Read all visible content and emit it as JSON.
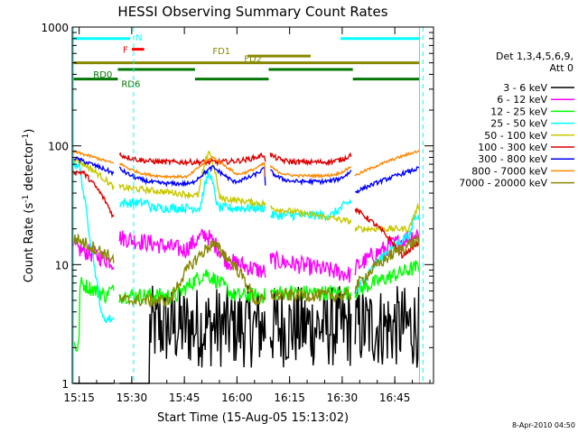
{
  "chart_data": {
    "type": "line",
    "title": "HESSI Observing Summary Count Rates",
    "xlabel": "Start Time (15-Aug-05 15:13:02)",
    "ylabel_main": "Count Rate (s",
    "ylabel_sup1": "-1",
    "ylabel_mid": " detector",
    "ylabel_sup2": "-1",
    "ylabel_end": ")",
    "y_scale": "log",
    "xlim_minutes": [
      0,
      103
    ],
    "ylim": [
      1,
      1000
    ],
    "xticks": [
      {
        "label": "15:15",
        "m": 1.967
      },
      {
        "label": "15:30",
        "m": 16.967
      },
      {
        "label": "15:45",
        "m": 31.967
      },
      {
        "label": "16:00",
        "m": 46.967
      },
      {
        "label": "16:15",
        "m": 61.967
      },
      {
        "label": "16:30",
        "m": 76.967
      },
      {
        "label": "16:45",
        "m": 91.967
      }
    ],
    "yticks": [
      {
        "label": "1",
        "v": 1
      },
      {
        "label": "10",
        "v": 10
      },
      {
        "label": "100",
        "v": 100
      },
      {
        "label": "1000",
        "v": 1000
      }
    ],
    "legend_header": [
      "Det 1,3,4,5,6,9,",
      "Att 0"
    ],
    "series": [
      {
        "name": "3 - 6 keV",
        "color": "#000000"
      },
      {
        "name": "6 - 12 keV",
        "color": "#ff00ff"
      },
      {
        "name": "12 - 25 keV",
        "color": "#00ff00"
      },
      {
        "name": "25 - 50 keV",
        "color": "#00ffff"
      },
      {
        "name": "50 - 100 keV",
        "color": "#c8c800"
      },
      {
        "name": "100 - 300 keV",
        "color": "#dd0000"
      },
      {
        "name": "300 - 800 keV",
        "color": "#0000ff"
      },
      {
        "name": "800 - 7000 keV",
        "color": "#ff8800"
      },
      {
        "name": "7000 - 20000 keV",
        "color": "#888800"
      }
    ],
    "night_lines_minutes": [
      0.3,
      99.0
    ],
    "saa_lines_minutes": [
      17.5,
      100.0
    ],
    "flag_bars": [
      {
        "label": "N",
        "color": "#00ffff",
        "y": 800,
        "segments": [
          [
            0.3,
            16.5
          ],
          [
            76.5,
            99.0
          ]
        ]
      },
      {
        "label": "F",
        "color": "#ff0000",
        "y": 650,
        "segments": [
          [
            17.0,
            20.5
          ]
        ]
      },
      {
        "label": "FD1",
        "color": "#888800",
        "y": 570,
        "segments": [
          [
            50.0,
            68.0
          ]
        ]
      },
      {
        "label": "FD2",
        "color": "#888800",
        "y": 500,
        "segments": [
          [
            0.3,
            99.0
          ]
        ]
      },
      {
        "label": "RD0",
        "color": "#007700",
        "y": 440,
        "segments": [
          [
            13.0,
            35.0
          ],
          [
            56.0,
            80.0
          ]
        ]
      },
      {
        "label": "RD6",
        "color": "#007700",
        "y": 365,
        "segments": [
          [
            0.3,
            13.0
          ],
          [
            35.0,
            56.0
          ],
          [
            80.0,
            99.0
          ]
        ]
      }
    ]
  },
  "footer_date": "8-Apr-2010 04:50"
}
